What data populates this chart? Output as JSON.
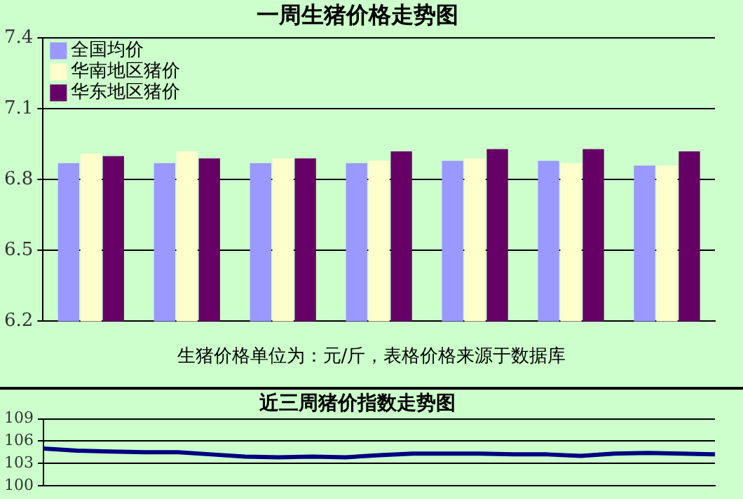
{
  "chart_data": [
    {
      "type": "bar",
      "title": "一周生猪价格走势图",
      "categories": [
        null,
        null,
        null,
        null,
        null,
        null,
        null
      ],
      "series": [
        {
          "name": "全国均价",
          "color": "#9999ff",
          "values": [
            6.87,
            6.87,
            6.87,
            6.87,
            6.88,
            6.88,
            6.86
          ]
        },
        {
          "name": "华南地区猪价",
          "color": "#ffffcc",
          "values": [
            6.91,
            6.92,
            6.89,
            6.88,
            6.89,
            6.87,
            6.86
          ]
        },
        {
          "name": "华东地区猪价",
          "color": "#660066",
          "values": [
            6.9,
            6.89,
            6.89,
            6.92,
            6.93,
            6.93,
            6.92
          ]
        }
      ],
      "ylim": [
        6.2,
        7.4
      ],
      "yticks": [
        6.2,
        6.5,
        6.8,
        7.1,
        7.4
      ],
      "grid": "y",
      "legend": "top left",
      "tick_labels": "y",
      "annotations": [
        "生猪价格单位为：元/斤，表格价格来源于数据库"
      ]
    },
    {
      "type": "line",
      "title": "近三周猪价指数走势图",
      "categories": [
        null,
        null,
        null,
        null,
        null,
        null,
        null,
        null,
        null,
        null,
        null,
        null,
        null,
        null,
        null,
        null,
        null,
        null,
        null,
        null,
        null
      ],
      "series": [
        {
          "color": "#000080",
          "values": [
            105.0,
            104.7,
            104.6,
            104.5,
            104.5,
            104.2,
            103.9,
            103.8,
            103.9,
            103.8,
            104.1,
            104.3,
            104.3,
            104.3,
            104.2,
            104.2,
            104.0,
            104.3,
            104.4,
            104.3,
            104.2
          ]
        }
      ],
      "ylim": [
        100,
        109
      ],
      "yticks": [
        100,
        103,
        106,
        109
      ],
      "grid": "y",
      "tick_labels": "y",
      "marker": "none"
    }
  ]
}
